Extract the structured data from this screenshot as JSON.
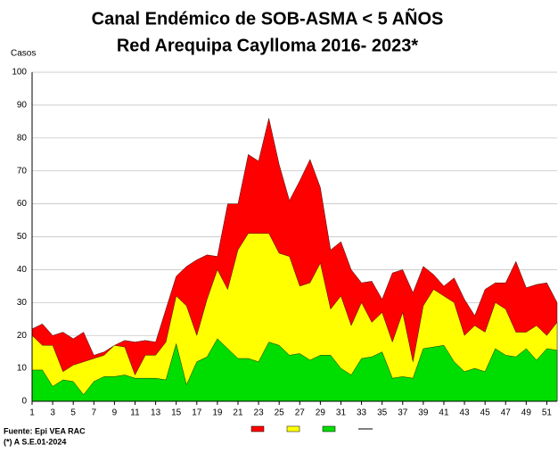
{
  "chart_data": {
    "type": "area",
    "title": [
      "Canal Endémico de SOB-ASMA < 5 AÑOS",
      "Red Arequipa Caylloma 2016- 2023*"
    ],
    "y_label": "Casos",
    "notes": [
      "Fuente: Epi VEA RAC",
      "(*) A S.E.01-2024"
    ],
    "x": [
      1,
      2,
      3,
      4,
      5,
      6,
      7,
      8,
      9,
      10,
      11,
      12,
      13,
      14,
      15,
      16,
      17,
      18,
      19,
      20,
      21,
      22,
      23,
      24,
      25,
      26,
      27,
      28,
      29,
      30,
      31,
      32,
      33,
      34,
      35,
      36,
      37,
      38,
      39,
      40,
      41,
      42,
      43,
      44,
      45,
      46,
      47,
      48,
      49,
      50,
      51,
      52
    ],
    "xlim": [
      1,
      52
    ],
    "xticks": [
      1,
      3,
      5,
      7,
      9,
      11,
      13,
      15,
      17,
      19,
      21,
      23,
      25,
      27,
      29,
      31,
      33,
      35,
      37,
      39,
      41,
      43,
      45,
      47,
      49,
      51
    ],
    "ylim": [
      0,
      100
    ],
    "yticks": [
      0,
      10,
      20,
      30,
      40,
      50,
      60,
      70,
      80,
      90,
      100
    ],
    "grid": true,
    "series": [
      {
        "color": "#ff0000",
        "values": [
          22,
          23.5,
          20,
          21,
          19,
          21,
          14,
          15,
          17,
          18.5,
          18,
          18.5,
          18,
          28,
          38,
          41,
          43,
          44.5,
          44,
          60,
          60,
          75,
          73,
          86,
          72,
          61,
          67,
          73.5,
          65,
          46,
          48.5,
          40,
          36,
          36.5,
          31,
          39,
          40,
          33,
          41,
          38.5,
          35,
          37.5,
          31,
          26,
          34,
          36,
          36,
          42.5,
          34.5,
          35.5,
          36,
          30
        ]
      },
      {
        "color": "#ffff00",
        "values": [
          20,
          17,
          17,
          9,
          11,
          12,
          13,
          14,
          17,
          16.5,
          8,
          14,
          14,
          18,
          32,
          29,
          20,
          31,
          40,
          34,
          46,
          51,
          51,
          51,
          45,
          44,
          35,
          36,
          42,
          28,
          32,
          23,
          30,
          24,
          27,
          18,
          27,
          12,
          29,
          34,
          32,
          30,
          20,
          23,
          21,
          30,
          28,
          21,
          21,
          23,
          20,
          24
        ]
      },
      {
        "color": "#00dd00",
        "values": [
          9.5,
          9.5,
          4.5,
          6.5,
          6,
          2,
          6,
          7.5,
          7.5,
          8,
          7,
          7,
          7,
          6.5,
          17.5,
          5,
          12,
          13.5,
          19,
          16,
          13,
          13,
          12,
          18,
          17,
          14,
          14.5,
          12.5,
          14,
          14,
          10,
          8,
          13,
          13.5,
          15,
          7,
          7.5,
          7,
          16,
          16.5,
          17,
          12,
          9,
          10,
          9,
          16,
          14,
          13.5,
          16,
          12.5,
          16,
          15.5
        ]
      }
    ]
  }
}
